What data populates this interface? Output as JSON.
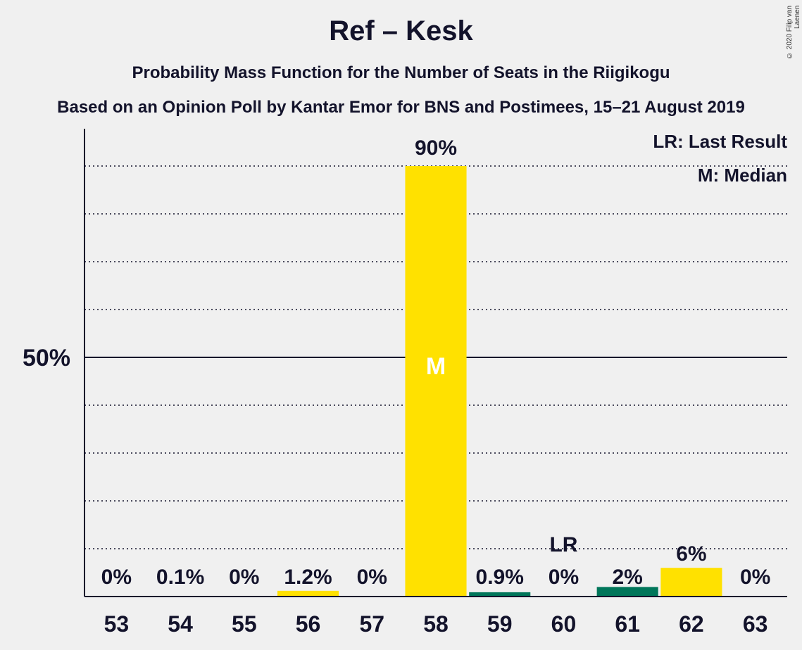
{
  "title": "Ref – Kesk",
  "subtitle": "Probability Mass Function for the Number of Seats in the Riigikogu",
  "subtitle2": "Based on an Opinion Poll by Kantar Emor for BNS and Postimees, 15–21 August 2019",
  "copyright": "© 2020 Filip van Laenen",
  "legend": {
    "last_result": "LR: Last Result",
    "median": "M: Median"
  },
  "colors": {
    "yellow": "#ffe100",
    "green": "#00765a",
    "text": "#13132b",
    "background": "#f0f0f0"
  },
  "chart_data": {
    "type": "bar",
    "categories": [
      "53",
      "54",
      "55",
      "56",
      "57",
      "58",
      "59",
      "60",
      "61",
      "62",
      "63"
    ],
    "values": [
      0,
      0.1,
      0,
      1.2,
      0,
      90,
      0.9,
      0,
      2,
      6,
      0
    ],
    "labels": [
      "0%",
      "0.1%",
      "0%",
      "1.2%",
      "0%",
      "90%",
      "0.9%",
      "0%",
      "2%",
      "6%",
      "0%"
    ],
    "bar_colors": [
      "yellow",
      "yellow",
      "yellow",
      "yellow",
      "yellow",
      "yellow",
      "green",
      "green",
      "green",
      "yellow",
      "yellow"
    ],
    "ylim": [
      0,
      98
    ],
    "y_tick": {
      "value": 50,
      "label": "50%"
    },
    "y_gridlines": [
      10,
      20,
      30,
      40,
      60,
      70,
      80,
      90
    ],
    "median": {
      "category": "58",
      "label": "M"
    },
    "last_result": {
      "category": "60",
      "label": "LR"
    }
  }
}
